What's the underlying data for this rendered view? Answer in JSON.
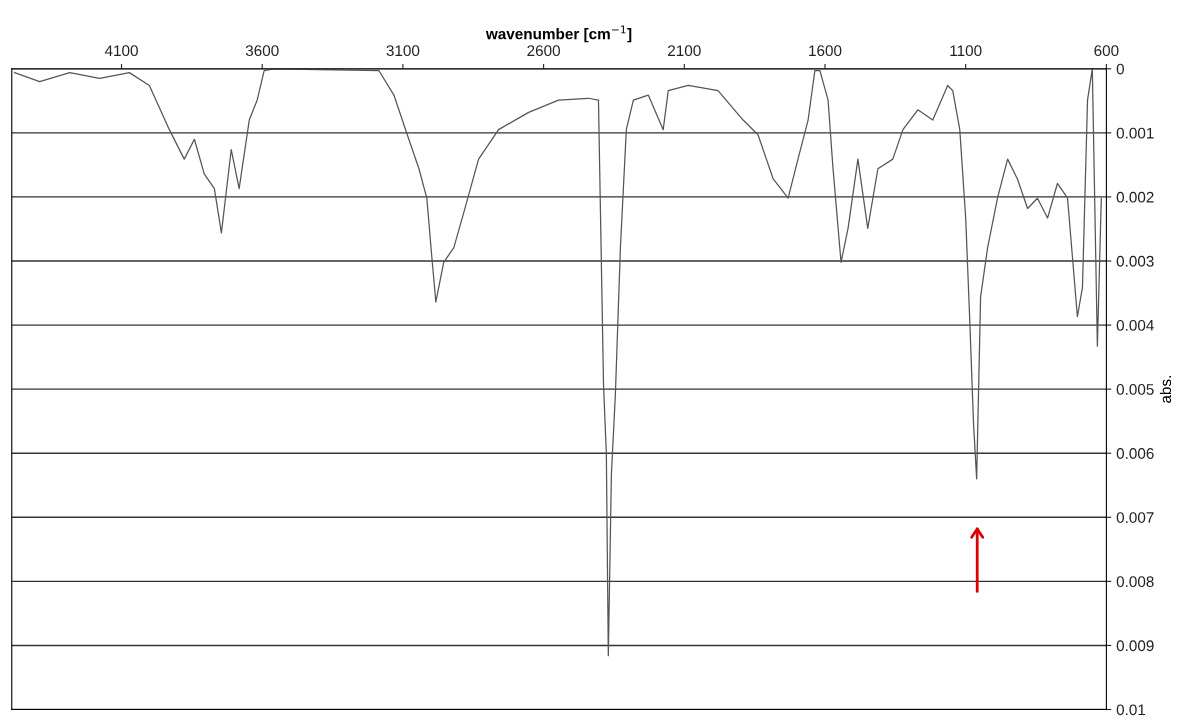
{
  "chart_data": {
    "type": "line",
    "xlabel": "wavenumber [cm$^{−1}$]",
    "ylabel": "abs.",
    "xlim": [
      4490,
      600
    ],
    "xticks": [
      4100,
      3600,
      3100,
      2600,
      2100,
      1600,
      1100,
      600
    ],
    "ylim": [
      0.01,
      0
    ],
    "yticks": [
      0,
      0.001,
      0.002,
      0.003,
      0.004,
      0.005,
      0.006,
      0.007,
      0.008,
      0.009,
      0.01
    ],
    "grid": "y",
    "marker": "none",
    "line_style": "solid",
    "series": [
      {
        "color": "#555555",
        "x": [
          4480,
          4391,
          4284,
          4178,
          4072,
          4001,
          3930,
          3877,
          3841,
          3806,
          3770,
          3745,
          3710,
          3682,
          3646,
          3618,
          3593,
          3558,
          3185,
          3132,
          3079,
          3043,
          3015,
          2997,
          2983,
          2955,
          2919,
          2884,
          2831,
          2760,
          2653,
          2547,
          2441,
          2405,
          2387,
          2377,
          2370,
          2359,
          2345,
          2327,
          2306,
          2281,
          2228,
          2175,
          2157,
          2086,
          1980,
          1891,
          1838,
          1784,
          1731,
          1696,
          1660,
          1636,
          1618,
          1589,
          1572,
          1543,
          1518,
          1483,
          1448,
          1412,
          1359,
          1323,
          1270,
          1217,
          1164,
          1146,
          1121,
          1100,
          1086,
          1072,
          1061,
          1047,
          1022,
          987,
          951,
          916,
          880,
          845,
          809,
          774,
          738,
          703,
          685,
          667,
          650,
          632,
          618
        ],
        "values": [
          6e-05,
          0.0002,
          6e-05,
          0.00015,
          6e-05,
          0.00026,
          0.00095,
          0.00141,
          0.0011,
          0.00164,
          0.00187,
          0.00256,
          0.00126,
          0.00187,
          0.0008,
          0.00049,
          3e-05,
          0,
          3e-05,
          0.00041,
          0.0011,
          0.00156,
          0.00202,
          0.00295,
          0.00364,
          0.00302,
          0.00279,
          0.00225,
          0.00141,
          0.00095,
          0.00068,
          0.00049,
          0.00046,
          0.00049,
          0.00494,
          0.00601,
          0.00916,
          0.00632,
          0.00509,
          0.00279,
          0.00095,
          0.00049,
          0.00041,
          0.00095,
          0.00034,
          0.00026,
          0.00034,
          0.0008,
          0.00103,
          0.00172,
          0.00202,
          0.00141,
          0.0008,
          3e-05,
          3e-05,
          0.00049,
          0.00153,
          0.00302,
          0.00249,
          0.00141,
          0.00249,
          0.00156,
          0.00141,
          0.00095,
          0.00064,
          0.0008,
          0.00026,
          0.00034,
          0.00095,
          0.00233,
          0.00387,
          0.00555,
          0.0064,
          0.00356,
          0.00279,
          0.00202,
          0.00141,
          0.00172,
          0.00218,
          0.00202,
          0.00233,
          0.00179,
          0.00202,
          0.00387,
          0.00341,
          0.00049,
          0,
          0.00433,
          0.00202
        ]
      }
    ]
  }
}
